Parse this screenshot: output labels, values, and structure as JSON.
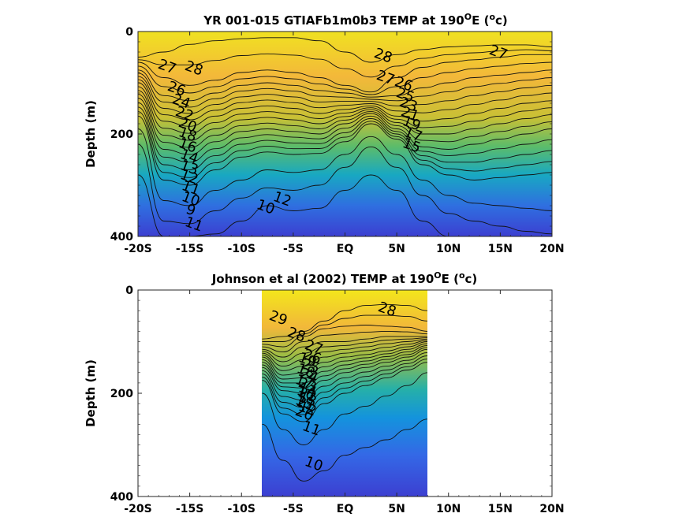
{
  "chart_data": [
    {
      "type": "heatmap",
      "subtype": "filled-contour",
      "title_main": "YR 001-015 GTIAFb1m0b3 TEMP at 190",
      "title_sup": "O",
      "title_mid": "E (",
      "title_sup2": "o",
      "title_end": "c)",
      "ylabel": "Depth (m)",
      "xlabel": "",
      "x_ticks": [
        "-20S",
        "-15S",
        "-10S",
        "-5S",
        "EQ",
        "5N",
        "10N",
        "15N",
        "20N"
      ],
      "x_tick_values": [
        -20,
        -15,
        -10,
        -5,
        0,
        5,
        10,
        15,
        20
      ],
      "y_ticks": [
        "0",
        "200",
        "400"
      ],
      "y_tick_values": [
        0,
        200,
        400
      ],
      "xlim": [
        -20,
        20
      ],
      "ylim": [
        0,
        400
      ],
      "y_reversed": true,
      "data_xlim": [
        -20,
        20
      ],
      "colormap": "parula",
      "colors": {
        "warm": "#f2e51f",
        "mid": "#3fb8a2",
        "cold": "#3e3fd4"
      },
      "contour_interval": 1,
      "isotherms": [
        {
          "value": 28,
          "depth": [
            50,
            40,
            25,
            18,
            14,
            12,
            12,
            18,
            40,
            60,
            45,
            35,
            30,
            28,
            26,
            26,
            30
          ]
        },
        {
          "value": 26,
          "depth": [
            60,
            90,
            105,
            95,
            80,
            75,
            80,
            90,
            105,
            118,
            90,
            70,
            60,
            55,
            50,
            45,
            45
          ]
        },
        {
          "value": 24,
          "depth": [
            75,
            125,
            135,
            120,
            105,
            100,
            105,
            115,
            120,
            128,
            125,
            110,
            100,
            90,
            85,
            80,
            75
          ]
        },
        {
          "value": 20,
          "depth": [
            100,
            175,
            185,
            165,
            150,
            145,
            150,
            160,
            152,
            145,
            165,
            175,
            170,
            160,
            150,
            140,
            135
          ]
        },
        {
          "value": 16,
          "depth": [
            130,
            230,
            240,
            215,
            195,
            190,
            195,
            200,
            180,
            160,
            190,
            225,
            230,
            220,
            210,
            200,
            190
          ]
        },
        {
          "value": 12,
          "depth": [
            165,
            290,
            300,
            270,
            245,
            235,
            240,
            238,
            215,
            180,
            210,
            260,
            280,
            290,
            285,
            280,
            275
          ]
        },
        {
          "value": 11,
          "depth": [
            190,
            330,
            340,
            310,
            290,
            270,
            275,
            270,
            240,
            205,
            240,
            290,
            320,
            335,
            340,
            345,
            350
          ]
        },
        {
          "value": 10,
          "depth": [
            220,
            370,
            375,
            350,
            325,
            305,
            310,
            300,
            265,
            225,
            265,
            320,
            355,
            370,
            380,
            390,
            395
          ]
        },
        {
          "value": 9,
          "depth": [
            280,
            400,
            400,
            395,
            370,
            340,
            350,
            345,
            310,
            280,
            310,
            370,
            400,
            400,
            400,
            400,
            400
          ]
        }
      ],
      "contour_labels": [
        "27",
        "28",
        "28",
        "27",
        "27",
        "26",
        "26",
        "25",
        "24",
        "23",
        "22",
        "21",
        "20",
        "19",
        "18",
        "17",
        "16",
        "15",
        "14",
        "13",
        "12",
        "11",
        "10",
        "9",
        "11",
        "10",
        "12"
      ]
    },
    {
      "type": "heatmap",
      "subtype": "filled-contour",
      "title_main": "Johnson et al (2002) TEMP at 190",
      "title_sup": "O",
      "title_mid": "E (",
      "title_sup2": "o",
      "title_end": "c)",
      "ylabel": "Depth (m)",
      "xlabel": "",
      "x_ticks": [
        "-20S",
        "-15S",
        "-10S",
        "-5S",
        "EQ",
        "5N",
        "10N",
        "15N",
        "20N"
      ],
      "x_tick_values": [
        -20,
        -15,
        -10,
        -5,
        0,
        5,
        10,
        15,
        20
      ],
      "y_ticks": [
        "0",
        "200",
        "400"
      ],
      "y_tick_values": [
        0,
        200,
        400
      ],
      "xlim": [
        -20,
        20
      ],
      "ylim": [
        0,
        400
      ],
      "y_reversed": true,
      "data_xlim": [
        -8,
        8
      ],
      "colormap": "parula",
      "colors": {
        "warm": "#f2e51f",
        "mid": "#3fb8a2",
        "cold": "#3e3fd4"
      },
      "contour_interval": 1,
      "isotherms": [
        {
          "value": 28,
          "depth": [
            95,
            90,
            80,
            60,
            40,
            30,
            28,
            30,
            40
          ]
        },
        {
          "value": 26,
          "depth": [
            105,
            110,
            90,
            75,
            70,
            68,
            70,
            72,
            80
          ]
        },
        {
          "value": 24,
          "depth": [
            115,
            130,
            110,
            100,
            100,
            95,
            90,
            90,
            90
          ]
        },
        {
          "value": 20,
          "depth": [
            130,
            165,
            160,
            140,
            130,
            125,
            118,
            110,
            100
          ]
        },
        {
          "value": 16,
          "depth": [
            150,
            195,
            200,
            175,
            160,
            150,
            140,
            130,
            115
          ]
        },
        {
          "value": 12,
          "depth": [
            175,
            240,
            255,
            220,
            200,
            185,
            170,
            155,
            140
          ]
        },
        {
          "value": 11,
          "depth": [
            200,
            270,
            300,
            270,
            240,
            225,
            205,
            185,
            160
          ]
        },
        {
          "value": 10,
          "depth": [
            260,
            330,
            370,
            350,
            320,
            305,
            290,
            270,
            250
          ]
        }
      ],
      "contour_labels": [
        "29",
        "28",
        "28",
        "27",
        "26",
        "25",
        "24",
        "23",
        "22",
        "21",
        "20",
        "19",
        "18",
        "17",
        "16",
        "15",
        "14",
        "13",
        "12",
        "11",
        "10"
      ]
    }
  ]
}
